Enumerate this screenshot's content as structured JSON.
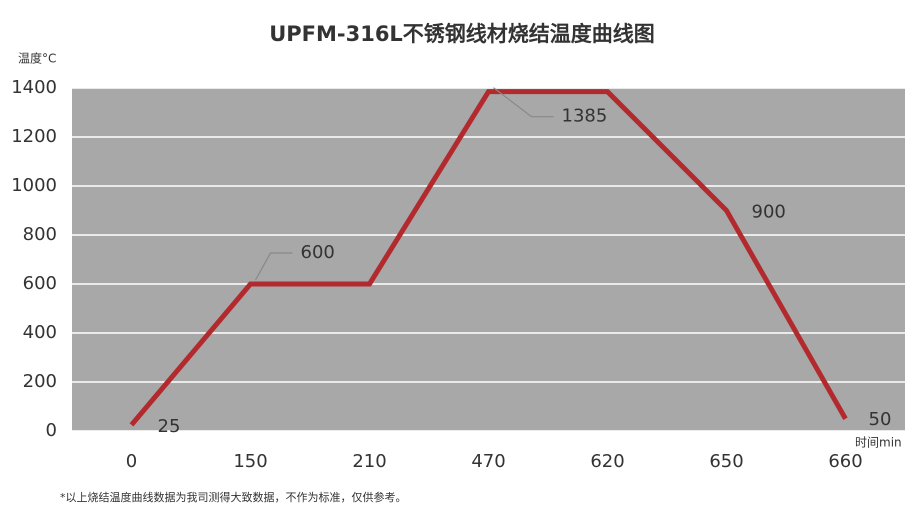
{
  "chart_data": {
    "type": "line",
    "title": "UPFM-316L不锈钢线材烧结温度曲线图",
    "y_axis_label": "温度°C",
    "x_axis_label": "时间min",
    "note": "*以上烧结温度曲线数据为我司测得大致数据，不作为标准，仅供参考。",
    "categories": [
      "0",
      "150",
      "210",
      "470",
      "620",
      "650",
      "660"
    ],
    "values": [
      25,
      600,
      600,
      1385,
      1385,
      900,
      50
    ],
    "value_labels": [
      "25",
      "600",
      null,
      "1385",
      null,
      "900",
      "50"
    ],
    "color": "#b22a2e",
    "ylim": [
      0,
      1400
    ],
    "yticks": [
      0,
      200,
      400,
      600,
      800,
      1000,
      1200,
      1400
    ],
    "grid": true
  }
}
